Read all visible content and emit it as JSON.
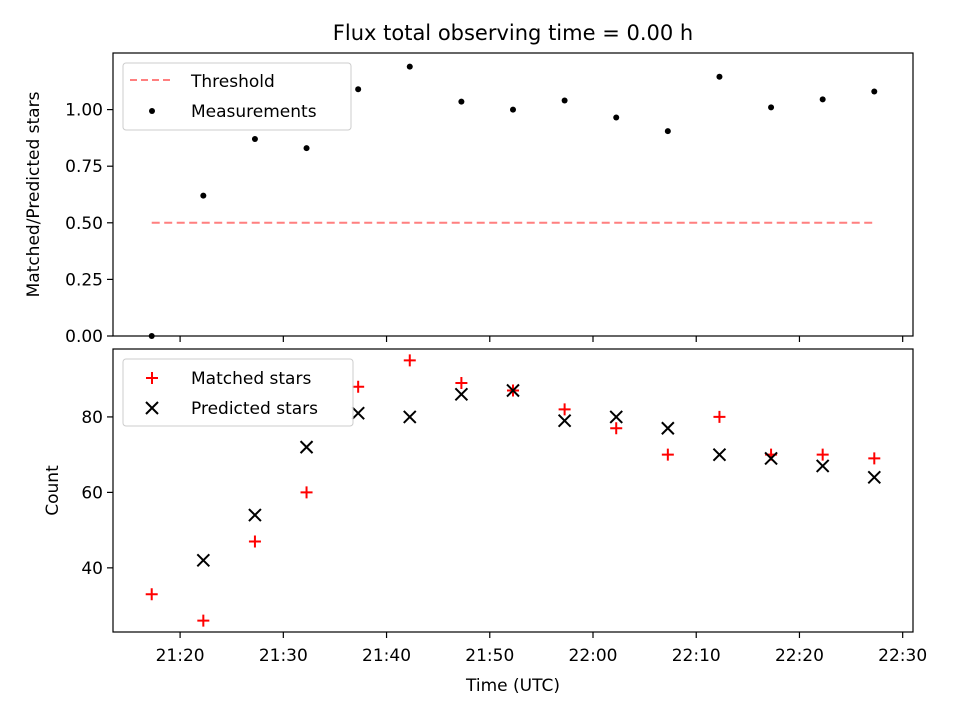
{
  "chart_data": [
    {
      "type": "scatter",
      "title": "Flux total observing time = 0.00 h",
      "ylabel": "Matched/Predicted stars",
      "xlim": [
        "21:13:30",
        "22:31:00"
      ],
      "ylim": [
        0,
        1.25
      ],
      "yticks": [
        0.0,
        0.25,
        0.5,
        0.75,
        1.0
      ],
      "ytick_labels": [
        "0.00",
        "0.25",
        "0.50",
        "0.75",
        "1.00"
      ],
      "legend": "top-left",
      "grid": false,
      "series": [
        {
          "name": "Threshold",
          "kind": "dashed-line",
          "color": "#ff7f7f",
          "x": [
            "21:17:15",
            "22:27:15"
          ],
          "y": [
            0.5,
            0.5
          ]
        },
        {
          "name": "Measurements",
          "kind": "dots",
          "color": "#000000",
          "x": [
            "21:17:15",
            "21:22:15",
            "21:27:15",
            "21:32:15",
            "21:37:15",
            "21:42:15",
            "21:47:15",
            "21:52:15",
            "21:57:15",
            "22:02:15",
            "22:07:15",
            "22:12:15",
            "22:17:15",
            "22:22:15",
            "22:27:15"
          ],
          "y": [
            0.0,
            0.62,
            0.87,
            0.83,
            1.09,
            1.19,
            1.035,
            1.0,
            1.04,
            0.965,
            0.905,
            1.145,
            1.01,
            1.045,
            1.08
          ]
        }
      ]
    },
    {
      "type": "scatter",
      "xlabel": "Time (UTC)",
      "ylabel": "Count",
      "xlim": [
        "21:13:30",
        "22:31:00"
      ],
      "ylim": [
        23,
        98
      ],
      "yticks": [
        40,
        60,
        80
      ],
      "xticks": [
        "21:20",
        "21:30",
        "21:40",
        "21:50",
        "22:00",
        "22:10",
        "22:20",
        "22:30"
      ],
      "legend": "top-left",
      "grid": false,
      "series": [
        {
          "name": "Matched stars",
          "kind": "plus",
          "color": "#ff0000",
          "x": [
            "21:17:15",
            "21:22:15",
            "21:27:15",
            "21:32:15",
            "21:37:15",
            "21:42:15",
            "21:47:15",
            "21:52:15",
            "21:57:15",
            "22:02:15",
            "22:07:15",
            "22:12:15",
            "22:17:15",
            "22:22:15",
            "22:27:15"
          ],
          "y": [
            33,
            26,
            47,
            60,
            88,
            95,
            89,
            87,
            82,
            77,
            70,
            80,
            70,
            70,
            69
          ]
        },
        {
          "name": "Predicted stars",
          "kind": "x",
          "color": "#000000",
          "x": [
            "21:17:15",
            "21:22:15",
            "21:27:15",
            "21:32:15",
            "21:37:15",
            "21:42:15",
            "21:47:15",
            "21:52:15",
            "21:57:15",
            "22:02:15",
            "22:07:15",
            "22:12:15",
            "22:17:15",
            "22:22:15",
            "22:27:15"
          ],
          "y": [
            null,
            42,
            54,
            72,
            81,
            80,
            86,
            87,
            79,
            80,
            77,
            70,
            69,
            67,
            64
          ]
        }
      ]
    }
  ]
}
